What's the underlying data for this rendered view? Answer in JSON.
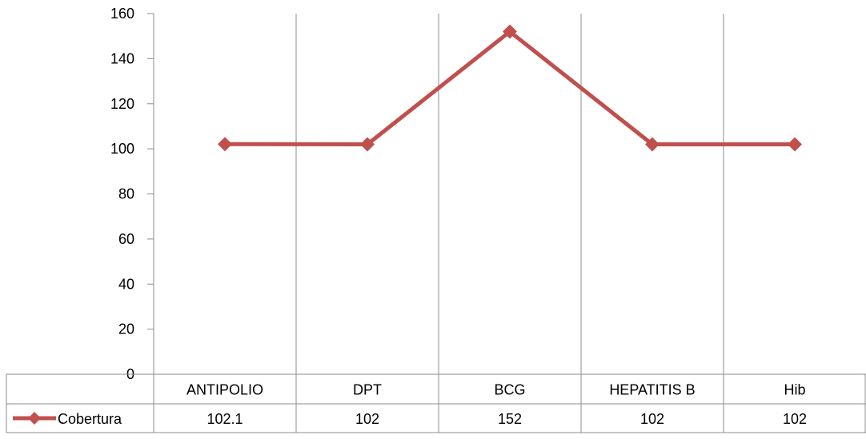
{
  "chart_data": {
    "type": "line",
    "title": "",
    "xlabel": "",
    "ylabel": "",
    "categories": [
      "ANTIPOLIO",
      "DPT",
      "BCG",
      "HEPATITIS B",
      "Hib"
    ],
    "series": [
      {
        "name": "Cobertura",
        "values": [
          102.1,
          102,
          152,
          102,
          102
        ],
        "table_labels": [
          "102.1",
          "102",
          "152",
          "102",
          "102"
        ],
        "color": "#c0504d",
        "marker": "diamond"
      }
    ],
    "ylim": [
      0,
      160
    ],
    "yticks": [
      0,
      20,
      40,
      60,
      80,
      100,
      120,
      140,
      160
    ],
    "grid": "vertical",
    "legend": "data-table"
  }
}
